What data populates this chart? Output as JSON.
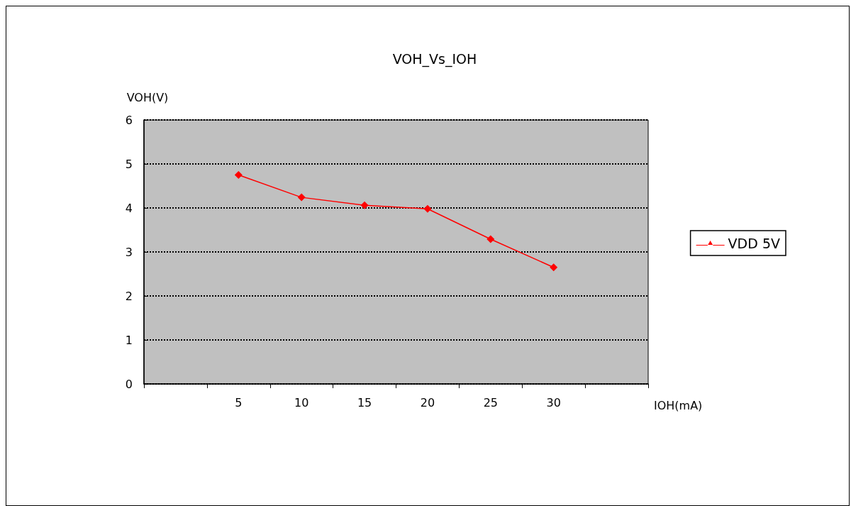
{
  "chart_data": {
    "type": "line",
    "title": "VOH_Vs_IOH",
    "xlabel": "IOH(mA)",
    "ylabel": "VOH(V)",
    "categories": [
      null,
      "5",
      "10",
      "15",
      "20",
      "25",
      "30",
      null
    ],
    "series": [
      {
        "name": "VDD 5V",
        "color": "#ff0000",
        "values": [
          null,
          4.75,
          4.24,
          4.06,
          3.98,
          3.29,
          2.65,
          null
        ]
      }
    ],
    "ylim": [
      0,
      6
    ],
    "yticks": [
      0,
      1,
      2,
      3,
      4,
      5,
      6
    ],
    "grid": "y",
    "legend": "right",
    "marker": "diamond",
    "line_style": "solid"
  }
}
